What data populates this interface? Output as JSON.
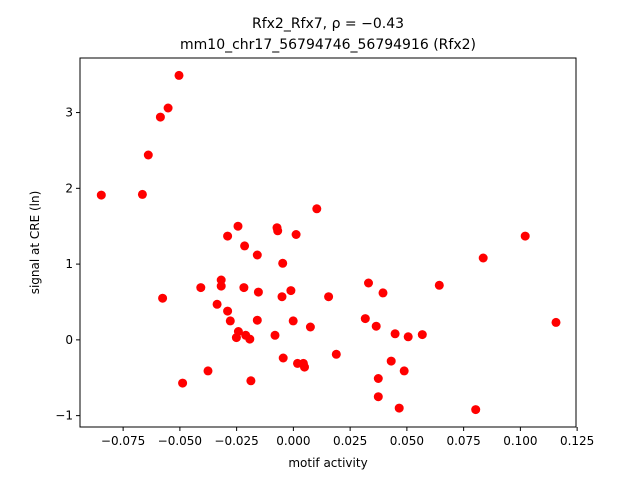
{
  "chart_data": {
    "type": "scatter",
    "title_line1": "Rfx2_Rfx7, ρ = −0.43",
    "title_line2": "mm10_chr17_56794746_56794916 (Rfx2)",
    "xlabel": "motif activity",
    "ylabel": "signal at CRE (ln)",
    "xlim": [
      -0.094,
      0.1245
    ],
    "ylim": [
      -1.15,
      3.72
    ],
    "xticks": [
      -0.075,
      -0.05,
      -0.025,
      0.0,
      0.025,
      0.05,
      0.075,
      0.1,
      0.125
    ],
    "xtick_labels": [
      "−0.075",
      "−0.050",
      "−0.025",
      "0.000",
      "0.025",
      "0.050",
      "0.075",
      "0.100",
      "0.125"
    ],
    "yticks": [
      -1,
      0,
      1,
      2,
      3
    ],
    "ytick_labels": [
      "−1",
      "0",
      "1",
      "2",
      "3"
    ],
    "grid": false,
    "marker_color": "#ff0000",
    "points": [
      [
        -0.0846,
        1.91
      ],
      [
        -0.0665,
        1.92
      ],
      [
        -0.0639,
        2.44
      ],
      [
        -0.0586,
        2.94
      ],
      [
        -0.0552,
        3.06
      ],
      [
        -0.0504,
        3.49
      ],
      [
        -0.0576,
        0.55
      ],
      [
        -0.0488,
        -0.57
      ],
      [
        -0.0376,
        -0.41
      ],
      [
        -0.0408,
        0.69
      ],
      [
        -0.0336,
        0.47
      ],
      [
        -0.0318,
        0.71
      ],
      [
        -0.0318,
        0.79
      ],
      [
        -0.029,
        0.38
      ],
      [
        -0.029,
        1.37
      ],
      [
        -0.0278,
        0.25
      ],
      [
        -0.0251,
        0.03
      ],
      [
        -0.0244,
        1.5
      ],
      [
        -0.0242,
        0.11
      ],
      [
        -0.0218,
        0.69
      ],
      [
        -0.0215,
        1.24
      ],
      [
        -0.021,
        0.06
      ],
      [
        -0.0192,
        0.01
      ],
      [
        -0.0187,
        -0.54
      ],
      [
        -0.0159,
        1.12
      ],
      [
        -0.0159,
        0.26
      ],
      [
        -0.0154,
        0.63
      ],
      [
        -0.0081,
        0.06
      ],
      [
        -0.0072,
        1.48
      ],
      [
        -0.0069,
        1.44
      ],
      [
        -0.005,
        0.57
      ],
      [
        -0.0047,
        1.01
      ],
      [
        -0.0045,
        -0.24
      ],
      [
        -0.0011,
        0.65
      ],
      [
        -0.0001,
        0.25
      ],
      [
        0.0012,
        1.39
      ],
      [
        0.0018,
        -0.31
      ],
      [
        0.0044,
        -0.31
      ],
      [
        0.0049,
        -0.36
      ],
      [
        0.0075,
        0.17
      ],
      [
        0.0103,
        1.73
      ],
      [
        0.0155,
        0.57
      ],
      [
        0.0189,
        -0.19
      ],
      [
        0.0317,
        0.28
      ],
      [
        0.0331,
        0.75
      ],
      [
        0.0365,
        0.18
      ],
      [
        0.0374,
        -0.51
      ],
      [
        0.0374,
        -0.75
      ],
      [
        0.0395,
        0.62
      ],
      [
        0.0431,
        -0.28
      ],
      [
        0.0448,
        0.08
      ],
      [
        0.0466,
        -0.9
      ],
      [
        0.0488,
        -0.41
      ],
      [
        0.0506,
        0.04
      ],
      [
        0.0568,
        0.07
      ],
      [
        0.0643,
        0.72
      ],
      [
        0.0803,
        -0.92
      ],
      [
        0.0836,
        1.08
      ],
      [
        0.1021,
        1.37
      ],
      [
        0.1157,
        0.23
      ]
    ]
  }
}
